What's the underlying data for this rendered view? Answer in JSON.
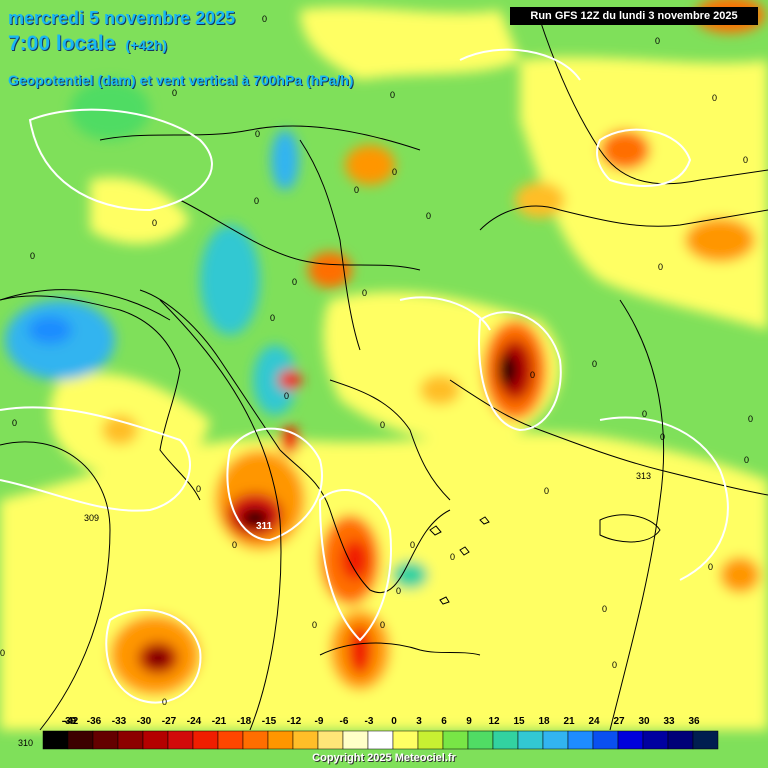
{
  "header": {
    "date_line": "mercredi 5 novembre 2025",
    "time_line": "7:00 locale",
    "lead_time": "(+42h)",
    "parameter": "Geopotentiel (dam) et vent vertical à 700hPa (hPa/h)"
  },
  "run_info": "Run GFS 12Z du lundi 3 novembre 2025",
  "copyright": "Copyright 2025 Meteociel.fr",
  "legend": {
    "ticks": [
      "-42",
      "-39",
      "-36",
      "-33",
      "-30",
      "-27",
      "-24",
      "-21",
      "-18",
      "-15",
      "-12",
      "-9",
      "-6",
      "-3",
      "0",
      "3",
      "6",
      "9",
      "12",
      "15",
      "18",
      "21",
      "24",
      "27",
      "30",
      "33",
      "36"
    ],
    "colors": [
      "#000000",
      "#3c0000",
      "#640000",
      "#8c0000",
      "#b40000",
      "#d20a0a",
      "#f01e00",
      "#ff4600",
      "#ff6e00",
      "#ff9600",
      "#ffbe28",
      "#ffe678",
      "#ffffc8",
      "#ffffff",
      "#ffff64",
      "#c8f032",
      "#78e646",
      "#50dc64",
      "#32d2a0",
      "#32c8d2",
      "#32b4f0",
      "#1e8cff",
      "#0a50f0",
      "#0000dc",
      "#0000a0",
      "#000078",
      "#001e50"
    ]
  },
  "contour_labels": {
    "zero": "0",
    "geopotential": [
      "313",
      "311",
      "309",
      "310"
    ]
  },
  "colors": {
    "title": "#19b7f2",
    "background": "#7fe05a"
  }
}
